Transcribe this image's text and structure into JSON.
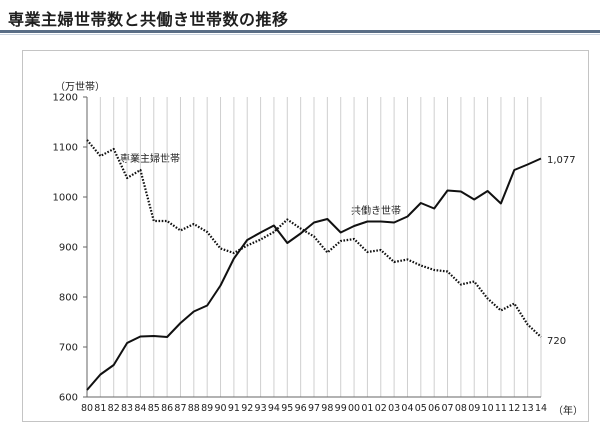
{
  "page": {
    "title": "専業主婦世帯数と共働き世帯数の推移"
  },
  "chart_data": {
    "type": "line",
    "title": "",
    "ylabel_unit": "（万世帯）",
    "xlabel_unit": "（年）",
    "ylim": [
      600,
      1200
    ],
    "yticks": [
      600,
      700,
      800,
      900,
      1000,
      1100,
      1200
    ],
    "grid": "vertical",
    "categories": [
      "80",
      "81",
      "82",
      "83",
      "84",
      "85",
      "86",
      "87",
      "88",
      "89",
      "90",
      "91",
      "92",
      "93",
      "94",
      "95",
      "96",
      "97",
      "98",
      "99",
      "00",
      "01",
      "02",
      "03",
      "04",
      "05",
      "06",
      "07",
      "08",
      "09",
      "10",
      "11",
      "12",
      "13",
      "14"
    ],
    "series": [
      {
        "name": "専業主婦世帯",
        "style": "dotted",
        "color": "#111111",
        "values": [
          1114,
          1082,
          1096,
          1038,
          1054,
          952,
          952,
          933,
          946,
          930,
          897,
          888,
          903,
          915,
          930,
          955,
          937,
          921,
          889,
          912,
          916,
          890,
          894,
          870,
          875,
          863,
          854,
          851,
          825,
          831,
          797,
          773,
          787,
          745,
          720
        ],
        "end_label": "720"
      },
      {
        "name": "共働き世帯",
        "style": "solid",
        "color": "#111111",
        "values": [
          614,
          645,
          664,
          708,
          721,
          722,
          720,
          748,
          771,
          783,
          823,
          877,
          914,
          929,
          943,
          908,
          927,
          949,
          956,
          929,
          942,
          951,
          951,
          949,
          961,
          988,
          977,
          1013,
          1011,
          995,
          1012,
          987,
          1054,
          1065,
          1077
        ],
        "end_label": "1,077"
      }
    ]
  }
}
